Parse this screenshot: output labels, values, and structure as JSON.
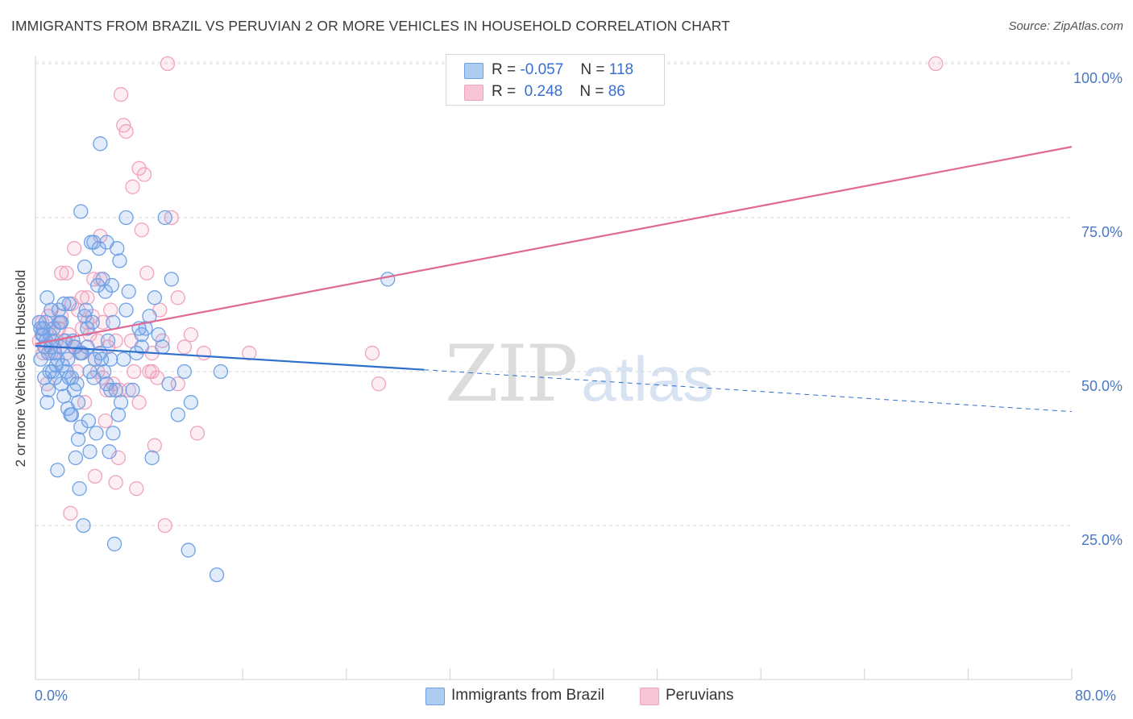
{
  "header": {
    "title": "IMMIGRANTS FROM BRAZIL VS PERUVIAN 2 OR MORE VEHICLES IN HOUSEHOLD CORRELATION CHART",
    "source": "Source: ZipAtlas.com"
  },
  "watermark": {
    "zip": "ZIP",
    "atlas": "atlas"
  },
  "legend": {
    "brazil": {
      "r_label": "R =",
      "r_value": "-0.057",
      "n_label": "N =",
      "n_value": "118"
    },
    "peru": {
      "r_label": "R =",
      "r_value": " 0.248",
      "n_label": "N =",
      "n_value": "86"
    }
  },
  "chart_data": {
    "type": "scatter",
    "title": "IMMIGRANTS FROM BRAZIL VS PERUVIAN 2 OR MORE VEHICLES IN HOUSEHOLD CORRELATION CHART",
    "xlabel": "",
    "ylabel": "2 or more Vehicles in Household",
    "xlim": [
      0,
      80
    ],
    "ylim": [
      0,
      102
    ],
    "x_tick_labels": [
      "0.0%",
      "80.0%"
    ],
    "y_ticks": [
      25,
      50,
      75,
      100
    ],
    "y_tick_labels": [
      "25.0%",
      "50.0%",
      "75.0%",
      "100.0%"
    ],
    "colors": {
      "brazil": "#6fa1e6",
      "peru": "#f0a3bd",
      "brazil_line": "#2f6fcc",
      "peru_line": "#e06a93"
    },
    "series": [
      {
        "name": "Immigrants from Brazil",
        "trend": {
          "x0": 0,
          "y0": 54.2,
          "x1": 30,
          "y1": 50.3,
          "dashed_to_x": 80,
          "dashed_to_y": 43.5
        },
        "points": [
          [
            0.3,
            58
          ],
          [
            0.4,
            52
          ],
          [
            0.5,
            56
          ],
          [
            0.6,
            57
          ],
          [
            0.7,
            49
          ],
          [
            0.8,
            55
          ],
          [
            0.9,
            45
          ],
          [
            1.0,
            53
          ],
          [
            1.1,
            56
          ],
          [
            1.2,
            54
          ],
          [
            1.3,
            50
          ],
          [
            1.4,
            57
          ],
          [
            1.5,
            53
          ],
          [
            1.6,
            51
          ],
          [
            1.7,
            52
          ],
          [
            1.8,
            60
          ],
          [
            1.9,
            58
          ],
          [
            2.0,
            48
          ],
          [
            2.1,
            51
          ],
          [
            2.2,
            46
          ],
          [
            2.3,
            55
          ],
          [
            2.4,
            50
          ],
          [
            2.5,
            44
          ],
          [
            2.6,
            61
          ],
          [
            2.7,
            43
          ],
          [
            2.8,
            49
          ],
          [
            2.9,
            55
          ],
          [
            3.0,
            54
          ],
          [
            3.1,
            36
          ],
          [
            3.2,
            48
          ],
          [
            3.3,
            45
          ],
          [
            3.4,
            31
          ],
          [
            3.5,
            41
          ],
          [
            3.6,
            53
          ],
          [
            3.7,
            25
          ],
          [
            3.8,
            67
          ],
          [
            3.9,
            60
          ],
          [
            4.0,
            57
          ],
          [
            4.1,
            42
          ],
          [
            4.2,
            37
          ],
          [
            4.3,
            71
          ],
          [
            4.4,
            58
          ],
          [
            4.5,
            49
          ],
          [
            4.6,
            52
          ],
          [
            4.7,
            40
          ],
          [
            4.8,
            64
          ],
          [
            4.9,
            70
          ],
          [
            5.0,
            53
          ],
          [
            5.1,
            52
          ],
          [
            5.2,
            65
          ],
          [
            5.3,
            50
          ],
          [
            5.4,
            63
          ],
          [
            5.5,
            71
          ],
          [
            5.6,
            55
          ],
          [
            5.7,
            37
          ],
          [
            5.8,
            47
          ],
          [
            5.9,
            64
          ],
          [
            6.0,
            40
          ],
          [
            6.1,
            22
          ],
          [
            6.2,
            47
          ],
          [
            6.3,
            70
          ],
          [
            6.4,
            43
          ],
          [
            6.5,
            68
          ],
          [
            6.8,
            52
          ],
          [
            7.0,
            60
          ],
          [
            7.2,
            63
          ],
          [
            7.5,
            47
          ],
          [
            7.8,
            53
          ],
          [
            8.0,
            57
          ],
          [
            8.2,
            56
          ],
          [
            8.5,
            57
          ],
          [
            8.8,
            59
          ],
          [
            9.0,
            36
          ],
          [
            9.2,
            62
          ],
          [
            9.5,
            56
          ],
          [
            10.0,
            75
          ],
          [
            10.3,
            48
          ],
          [
            10.5,
            65
          ],
          [
            11.0,
            43
          ],
          [
            11.5,
            50
          ],
          [
            11.8,
            21
          ],
          [
            12.0,
            45
          ],
          [
            14.0,
            17
          ],
          [
            14.3,
            50
          ],
          [
            27.2,
            65
          ],
          [
            5.0,
            87
          ],
          [
            3.5,
            76
          ],
          [
            1.0,
            47
          ],
          [
            1.5,
            49
          ],
          [
            2.0,
            58
          ],
          [
            2.5,
            52
          ],
          [
            3.0,
            47
          ],
          [
            4.0,
            54
          ],
          [
            1.2,
            60
          ],
          [
            0.8,
            58
          ],
          [
            2.8,
            43
          ],
          [
            3.3,
            39
          ],
          [
            1.7,
            34
          ],
          [
            0.6,
            56
          ],
          [
            7.0,
            75
          ],
          [
            8.2,
            54
          ],
          [
            4.5,
            71
          ],
          [
            6.0,
            58
          ],
          [
            0.9,
            62
          ],
          [
            2.2,
            61
          ],
          [
            3.5,
            53
          ],
          [
            5.5,
            48
          ],
          [
            1.3,
            55
          ],
          [
            0.4,
            57
          ],
          [
            9.8,
            54
          ],
          [
            6.6,
            45
          ],
          [
            4.2,
            50
          ],
          [
            2.6,
            49
          ],
          [
            1.9,
            54
          ],
          [
            3.8,
            59
          ],
          [
            5.8,
            52
          ],
          [
            0.7,
            54
          ],
          [
            1.1,
            50
          ]
        ]
      },
      {
        "name": "Peruvians",
        "trend": {
          "x0": 0,
          "y0": 54.5,
          "x1": 80,
          "y1": 86.5
        },
        "points": [
          [
            0.3,
            55
          ],
          [
            0.5,
            58
          ],
          [
            0.6,
            57
          ],
          [
            0.8,
            54
          ],
          [
            1.0,
            59
          ],
          [
            1.2,
            60
          ],
          [
            1.4,
            57
          ],
          [
            1.6,
            55
          ],
          [
            1.8,
            58
          ],
          [
            2.0,
            59
          ],
          [
            2.2,
            55
          ],
          [
            2.4,
            53
          ],
          [
            2.6,
            56
          ],
          [
            2.8,
            61
          ],
          [
            3.0,
            54
          ],
          [
            3.2,
            50
          ],
          [
            3.4,
            53
          ],
          [
            3.6,
            62
          ],
          [
            3.8,
            45
          ],
          [
            4.0,
            58
          ],
          [
            4.2,
            56
          ],
          [
            4.4,
            59
          ],
          [
            4.6,
            52
          ],
          [
            4.8,
            50
          ],
          [
            5.0,
            65
          ],
          [
            5.2,
            49
          ],
          [
            5.4,
            42
          ],
          [
            5.6,
            54
          ],
          [
            5.8,
            60
          ],
          [
            6.0,
            48
          ],
          [
            6.2,
            55
          ],
          [
            6.4,
            36
          ],
          [
            6.6,
            95
          ],
          [
            6.8,
            90
          ],
          [
            7.0,
            89
          ],
          [
            7.2,
            47
          ],
          [
            7.4,
            55
          ],
          [
            7.6,
            50
          ],
          [
            7.8,
            31
          ],
          [
            8.0,
            83
          ],
          [
            8.2,
            73
          ],
          [
            8.4,
            82
          ],
          [
            8.6,
            66
          ],
          [
            8.8,
            50
          ],
          [
            9.0,
            53
          ],
          [
            9.2,
            38
          ],
          [
            9.4,
            49
          ],
          [
            9.6,
            60
          ],
          [
            9.8,
            55
          ],
          [
            10.0,
            25
          ],
          [
            10.2,
            100
          ],
          [
            10.5,
            75
          ],
          [
            11.0,
            62
          ],
          [
            11.5,
            54
          ],
          [
            12.0,
            56
          ],
          [
            12.5,
            40
          ],
          [
            13.0,
            53
          ],
          [
            16.5,
            53
          ],
          [
            26.0,
            53
          ],
          [
            26.5,
            48
          ],
          [
            69.5,
            100
          ],
          [
            2.0,
            66
          ],
          [
            3.0,
            70
          ],
          [
            4.5,
            65
          ],
          [
            1.5,
            53
          ],
          [
            2.7,
            27
          ],
          [
            4.6,
            33
          ],
          [
            5.5,
            47
          ],
          [
            6.2,
            32
          ],
          [
            3.3,
            60
          ],
          [
            0.9,
            48
          ],
          [
            1.2,
            53
          ],
          [
            4.0,
            62
          ],
          [
            5.0,
            72
          ],
          [
            6.5,
            47
          ],
          [
            7.5,
            80
          ],
          [
            8.0,
            45
          ],
          [
            9.0,
            50
          ],
          [
            2.4,
            66
          ],
          [
            3.6,
            57
          ],
          [
            4.8,
            55
          ],
          [
            5.2,
            58
          ],
          [
            0.6,
            53
          ],
          [
            1.8,
            57
          ],
          [
            11.0,
            48
          ],
          [
            3.1,
            54
          ]
        ]
      }
    ]
  },
  "bottom_legend": {
    "brazil_label": "Immigrants from Brazil",
    "peru_label": "Peruvians"
  }
}
